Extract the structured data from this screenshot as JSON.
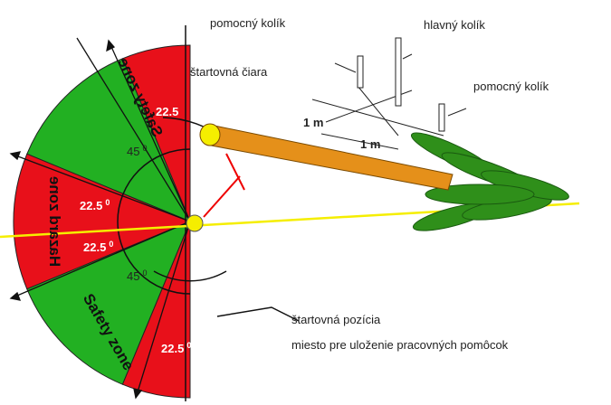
{
  "labels": {
    "aux_peg_top": "pomocný kolík",
    "main_peg": "hlavný kolík",
    "start_line": "štartovná čiara",
    "aux_peg_right": "pomocný kolík",
    "dist_1": "1 m",
    "dist_2": "1 m",
    "start_position": "štartovná pozícia",
    "tools_place": "miesto pre uloženie pracovných pomôcok"
  },
  "zones": {
    "safety_top": "Safety zone",
    "hazard": "Hazard zone",
    "safety_bottom": "Safety zone"
  },
  "angles": [
    {
      "value": "22.5"
    },
    {
      "value": "45",
      "unit": "0"
    },
    {
      "value": "22.5",
      "unit": "0"
    },
    {
      "value": "22.5",
      "unit": "0"
    },
    {
      "value": "45",
      "unit": "0"
    },
    {
      "value": "22.5",
      "unit": "0"
    }
  ]
}
